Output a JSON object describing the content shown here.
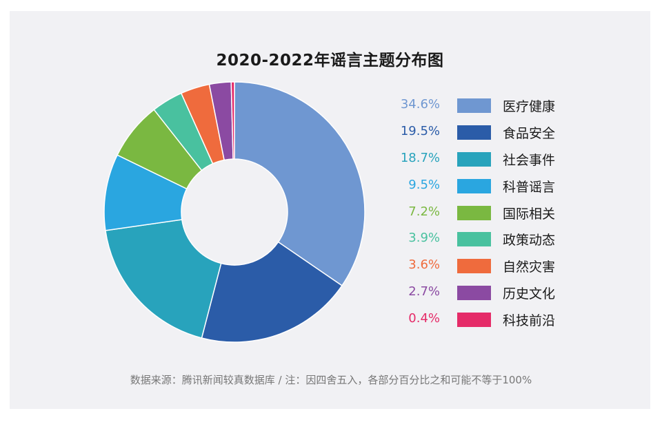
{
  "chart_data": {
    "type": "pie",
    "donut": true,
    "title": "2020-2022年谣言主题分布图",
    "categories": [
      "医疗健康",
      "食品安全",
      "社会事件",
      "科普谣言",
      "国际相关",
      "政策动态",
      "自然灾害",
      "历史文化",
      "科技前沿"
    ],
    "values": [
      34.6,
      19.5,
      18.7,
      9.5,
      7.2,
      3.9,
      3.6,
      2.7,
      0.4
    ],
    "value_labels": [
      "34.6%",
      "19.5%",
      "18.7%",
      "9.5%",
      "7.2%",
      "3.9%",
      "3.6%",
      "2.7%",
      "0.4%"
    ],
    "colors": [
      "#6f97d1",
      "#2b5ca8",
      "#28a3bc",
      "#2aa6e0",
      "#7ab841",
      "#49c19f",
      "#ef6b3d",
      "#8b4aa2",
      "#e52b68"
    ],
    "legend_position": "right"
  },
  "footnote": "数据来源：腾讯新闻较真数据库 / 注：因四舍五入，各部分百分比之和可能不等于100%"
}
